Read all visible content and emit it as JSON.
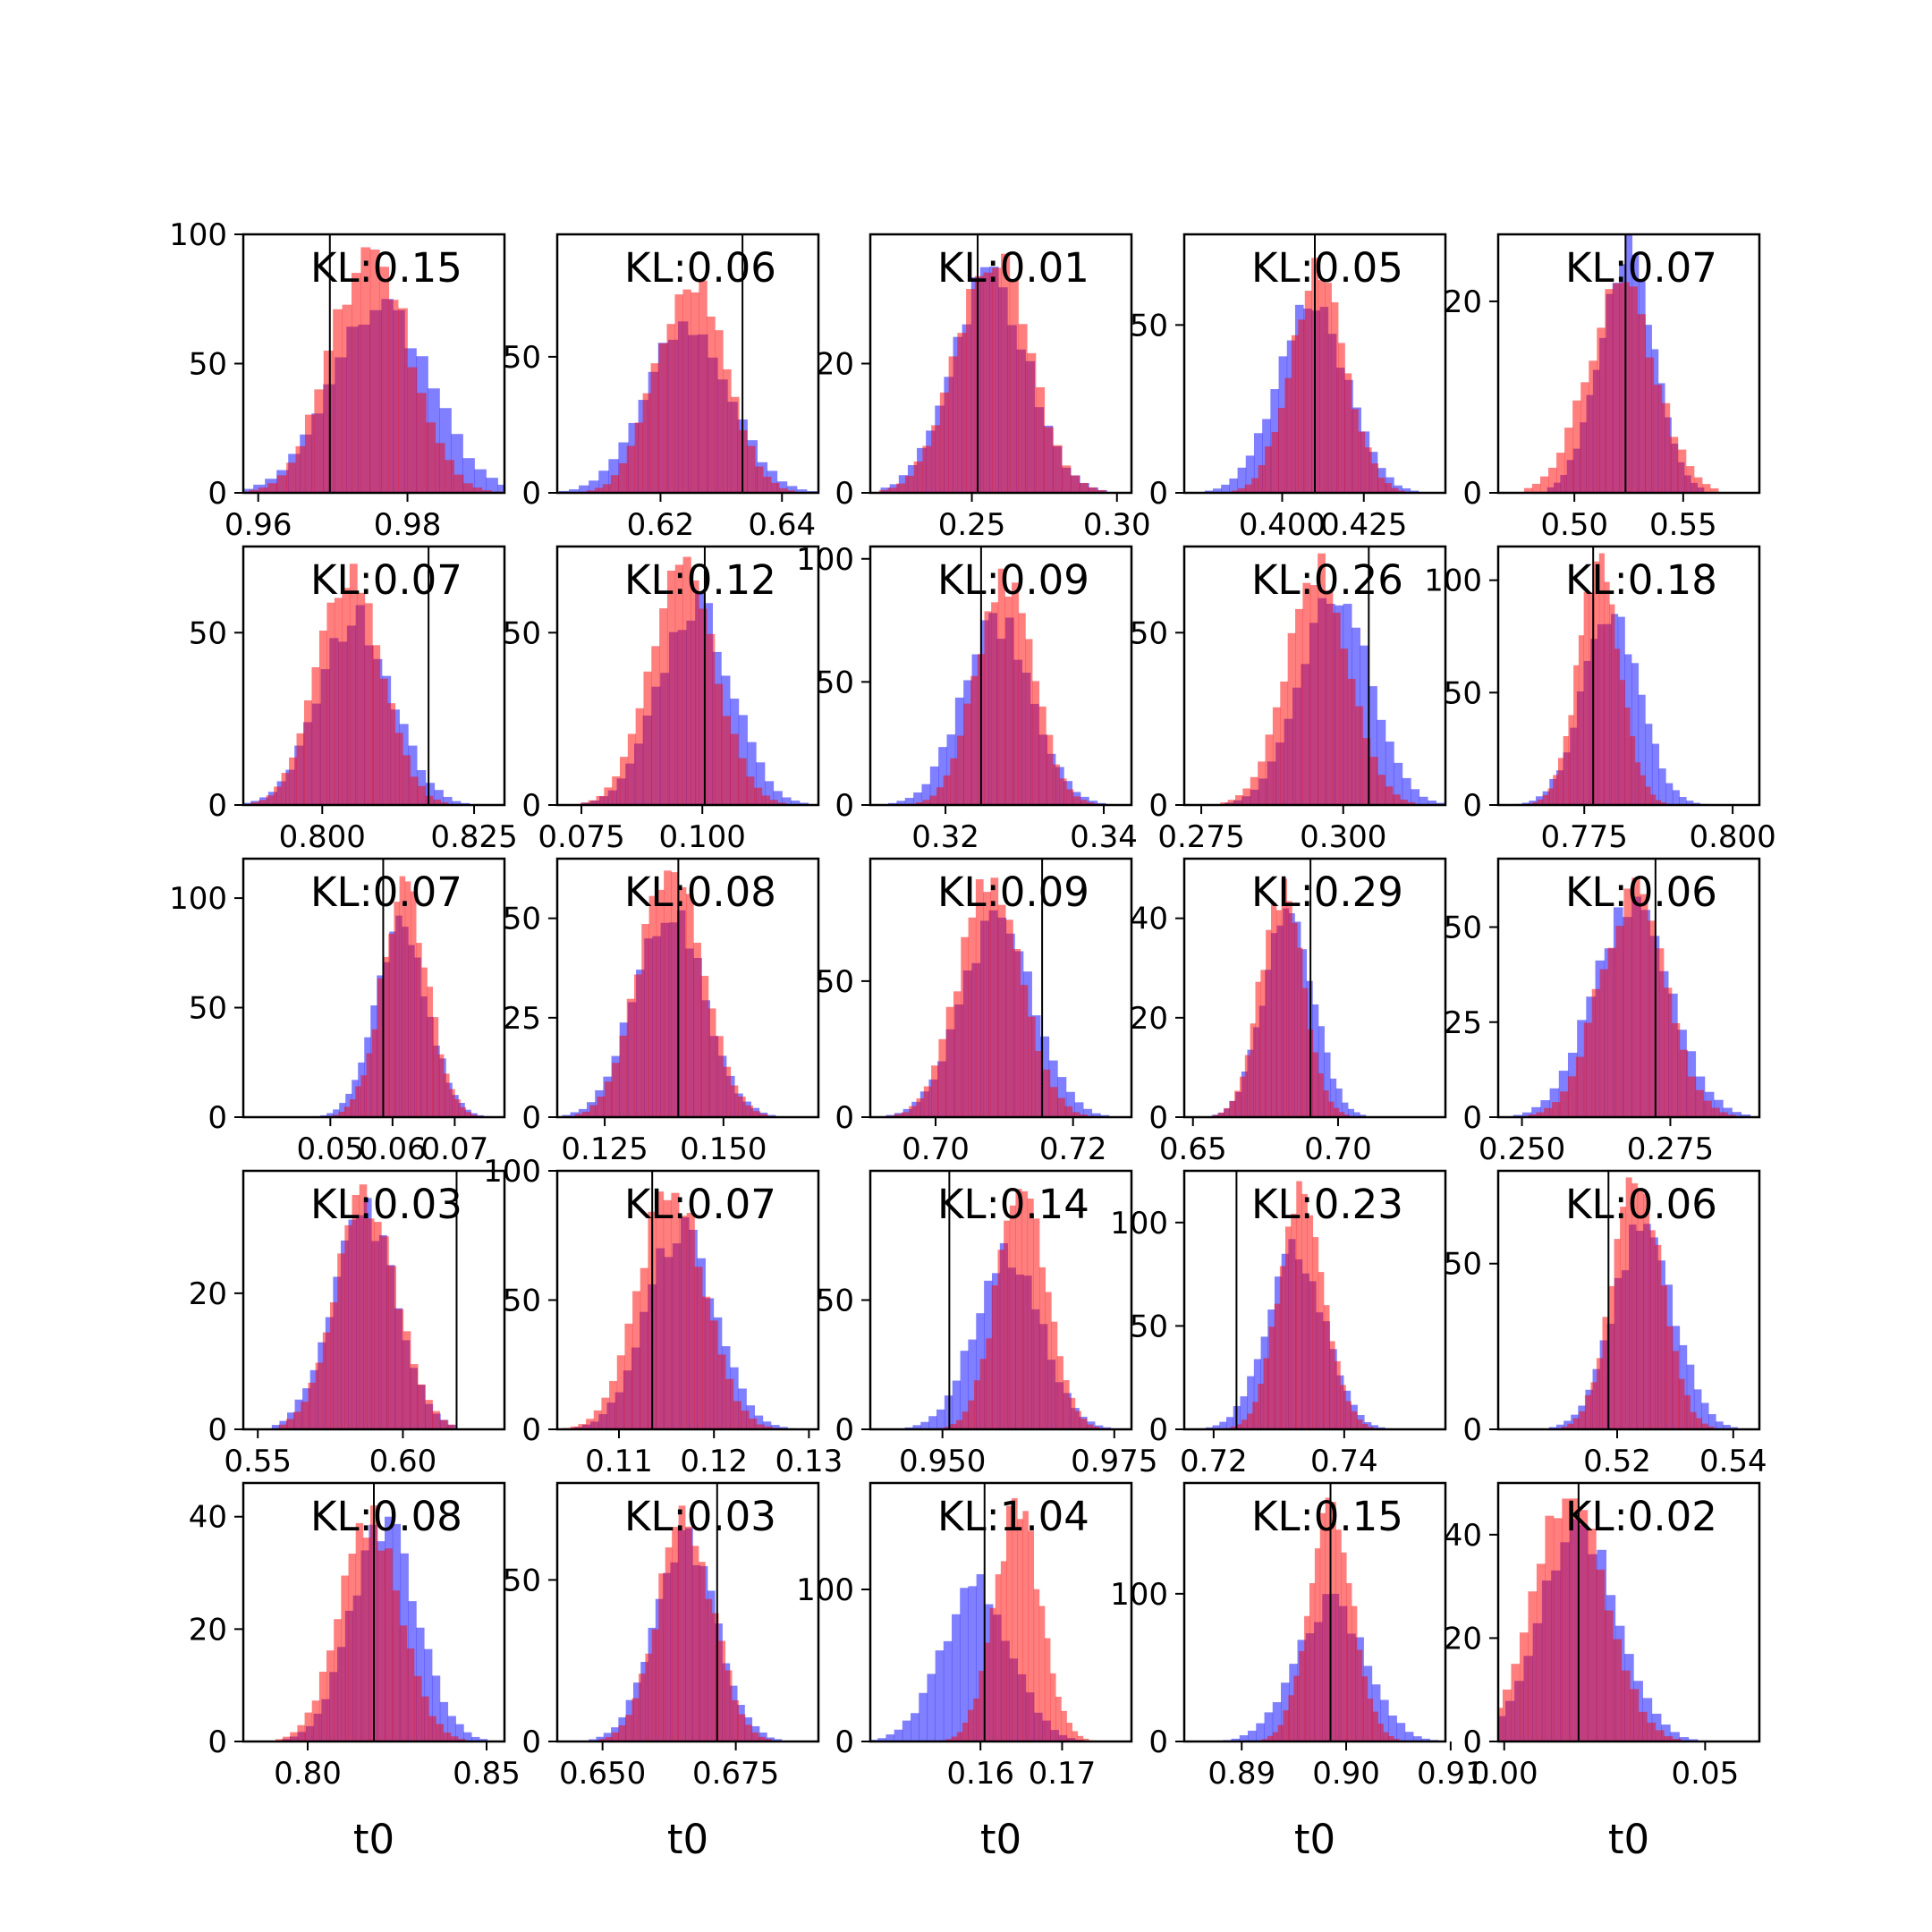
{
  "chart_data": {
    "type": "grid-of-histograms",
    "rows": 5,
    "cols": 5,
    "colors": {
      "series_a": "#ff0000",
      "series_b": "#0000ff",
      "overlap": "#7f00a0",
      "alpha": 0.5,
      "true_value_line": "#000000"
    },
    "xlabel": "t0",
    "panels": [
      {
        "kl": "KL:0.15",
        "xlim": [
          0.958,
          0.993
        ],
        "ylim": [
          0,
          100
        ],
        "xticks": [
          0.96,
          0.98
        ],
        "xtick_labels": [
          "0.96",
          "0.98"
        ],
        "yticks": [
          0,
          50,
          100
        ],
        "ytick_labels": [
          "0",
          "50",
          "100"
        ],
        "true_value": 0.9696,
        "red": {
          "mean": 0.975,
          "sd": 0.0052,
          "peak": 95
        },
        "blue": {
          "mean": 0.9765,
          "sd": 0.0065,
          "peak": 75
        }
      },
      {
        "kl": "KL:0.06",
        "xlim": [
          0.603,
          0.646
        ],
        "ylim": [
          0,
          95
        ],
        "xticks": [
          0.62,
          0.64
        ],
        "xtick_labels": [
          "0.62",
          "0.64"
        ],
        "yticks": [
          0,
          50
        ],
        "ytick_labels": [
          "0",
          "50"
        ],
        "true_value": 0.6335,
        "red": {
          "mean": 0.625,
          "sd": 0.0055,
          "peak": 78
        },
        "blue": {
          "mean": 0.6245,
          "sd": 0.0068,
          "peak": 63
        }
      },
      {
        "kl": "KL:0.01",
        "xlim": [
          0.215,
          0.305
        ],
        "ylim": [
          0,
          40
        ],
        "xticks": [
          0.25,
          0.3
        ],
        "xtick_labels": [
          "0.25",
          "0.30"
        ],
        "yticks": [
          0,
          20
        ],
        "ytick_labels": [
          "0",
          "20"
        ],
        "true_value": 0.252,
        "red": {
          "mean": 0.257,
          "sd": 0.0125,
          "peak": 37
        },
        "blue": {
          "mean": 0.256,
          "sd": 0.013,
          "peak": 35
        }
      },
      {
        "kl": "KL:0.05",
        "xlim": [
          0.37,
          0.45
        ],
        "ylim": [
          0,
          77
        ],
        "xticks": [
          0.4,
          0.425
        ],
        "xtick_labels": [
          "0.400",
          "0.425"
        ],
        "yticks": [
          0,
          50
        ],
        "ytick_labels": [
          "0",
          "50"
        ],
        "true_value": 0.41,
        "red": {
          "mean": 0.411,
          "sd": 0.0085,
          "peak": 70
        },
        "blue": {
          "mean": 0.409,
          "sd": 0.0105,
          "peak": 56
        }
      },
      {
        "kl": "KL:0.07",
        "xlim": [
          0.465,
          0.585
        ],
        "ylim": [
          0,
          27
        ],
        "xticks": [
          0.5,
          0.55
        ],
        "xtick_labels": [
          "0.50",
          "0.55"
        ],
        "yticks": [
          0,
          20
        ],
        "ytick_labels": [
          "0",
          "20"
        ],
        "true_value": 0.5235,
        "red": {
          "mean": 0.5215,
          "sd": 0.0155,
          "peak": 22
        },
        "blue": {
          "mean": 0.5235,
          "sd": 0.0125,
          "peak": 27
        }
      },
      {
        "kl": "KL:0.07",
        "xlim": [
          0.787,
          0.83
        ],
        "ylim": [
          0,
          75
        ],
        "xticks": [
          0.8,
          0.825
        ],
        "xtick_labels": [
          "0.800",
          "0.825"
        ],
        "yticks": [
          0,
          50
        ],
        "ytick_labels": [
          "0",
          "50"
        ],
        "true_value": 0.8175,
        "red": {
          "mean": 0.8045,
          "sd": 0.0052,
          "peak": 70
        },
        "blue": {
          "mean": 0.8055,
          "sd": 0.006,
          "peak": 58
        }
      },
      {
        "kl": "KL:0.12",
        "xlim": [
          0.07,
          0.124
        ],
        "ylim": [
          0,
          75
        ],
        "xticks": [
          0.075,
          0.1
        ],
        "xtick_labels": [
          "0.075",
          "0.100"
        ],
        "yticks": [
          0,
          50
        ],
        "ytick_labels": [
          "0",
          "50"
        ],
        "true_value": 0.1005,
        "red": {
          "mean": 0.096,
          "sd": 0.0068,
          "peak": 72
        },
        "blue": {
          "mean": 0.0985,
          "sd": 0.0075,
          "peak": 62
        }
      },
      {
        "kl": "KL:0.09",
        "xlim": [
          0.3105,
          0.3435
        ],
        "ylim": [
          0,
          105
        ],
        "xticks": [
          0.32,
          0.34
        ],
        "xtick_labels": [
          "0.32",
          "0.34"
        ],
        "yticks": [
          0,
          50,
          100
        ],
        "ytick_labels": [
          "0",
          "50",
          "100"
        ],
        "true_value": 0.3245,
        "red": {
          "mean": 0.3275,
          "sd": 0.0036,
          "peak": 96
        },
        "blue": {
          "mean": 0.3265,
          "sd": 0.0044,
          "peak": 78
        }
      },
      {
        "kl": "KL:0.26",
        "xlim": [
          0.272,
          0.318
        ],
        "ylim": [
          0,
          75
        ],
        "xticks": [
          0.275,
          0.3
        ],
        "xtick_labels": [
          "0.275",
          "0.300"
        ],
        "yticks": [
          0,
          50
        ],
        "ytick_labels": [
          "0",
          "50"
        ],
        "true_value": 0.3045,
        "red": {
          "mean": 0.2955,
          "sd": 0.0055,
          "peak": 73
        },
        "blue": {
          "mean": 0.2985,
          "sd": 0.0062,
          "peak": 60
        }
      },
      {
        "kl": "KL:0.18",
        "xlim": [
          0.7605,
          0.8045
        ],
        "ylim": [
          0,
          115
        ],
        "xticks": [
          0.775,
          0.8
        ],
        "xtick_labels": [
          "0.775",
          "0.800"
        ],
        "yticks": [
          0,
          50,
          100
        ],
        "ytick_labels": [
          "0",
          "50",
          "100"
        ],
        "true_value": 0.7765,
        "red": {
          "mean": 0.7775,
          "sd": 0.0036,
          "peak": 112
        },
        "blue": {
          "mean": 0.7795,
          "sd": 0.0048,
          "peak": 85
        }
      },
      {
        "kl": "KL:0.07",
        "xlim": [
          0.036,
          0.078
        ],
        "ylim": [
          0,
          118
        ],
        "xticks": [
          0.05,
          0.06,
          0.07
        ],
        "xtick_labels": [
          "0.05",
          "0.06",
          "0.07"
        ],
        "yticks": [
          0,
          50,
          100
        ],
        "ytick_labels": [
          "0",
          "50",
          "100"
        ],
        "true_value": 0.0585,
        "red": {
          "mean": 0.062,
          "sd": 0.0037,
          "peak": 110
        },
        "blue": {
          "mean": 0.0615,
          "sd": 0.0042,
          "peak": 92
        }
      },
      {
        "kl": "KL:0.08",
        "xlim": [
          0.115,
          0.17
        ],
        "ylim": [
          0,
          65
        ],
        "xticks": [
          0.125,
          0.15
        ],
        "xtick_labels": [
          "0.125",
          "0.150"
        ],
        "yticks": [
          0,
          25,
          50
        ],
        "ytick_labels": [
          "0",
          "25",
          "50"
        ],
        "true_value": 0.1405,
        "red": {
          "mean": 0.139,
          "sd": 0.0065,
          "peak": 62
        },
        "blue": {
          "mean": 0.1385,
          "sd": 0.0072,
          "peak": 52
        }
      },
      {
        "kl": "KL:0.09",
        "xlim": [
          0.6905,
          0.7285
        ],
        "ylim": [
          0,
          95
        ],
        "xticks": [
          0.7,
          0.72
        ],
        "xtick_labels": [
          "0.70",
          "0.72"
        ],
        "yticks": [
          0,
          50
        ],
        "ytick_labels": [
          "0",
          "50"
        ],
        "true_value": 0.7155,
        "red": {
          "mean": 0.708,
          "sd": 0.0045,
          "peak": 88
        },
        "blue": {
          "mean": 0.709,
          "sd": 0.0052,
          "peak": 76
        }
      },
      {
        "kl": "KL:0.29",
        "xlim": [
          0.647,
          0.737
        ],
        "ylim": [
          0,
          52
        ],
        "xticks": [
          0.65,
          0.7
        ],
        "xtick_labels": [
          "0.65",
          "0.70"
        ],
        "yticks": [
          0,
          20,
          40
        ],
        "ytick_labels": [
          "0",
          "20",
          "40"
        ],
        "true_value": 0.6905,
        "red": {
          "mean": 0.6805,
          "sd": 0.0075,
          "peak": 48
        },
        "blue": {
          "mean": 0.683,
          "sd": 0.0085,
          "peak": 42
        }
      },
      {
        "kl": "KL:0.06",
        "xlim": [
          0.246,
          0.29
        ],
        "ylim": [
          0,
          68
        ],
        "xticks": [
          0.25,
          0.275
        ],
        "xtick_labels": [
          "0.250",
          "0.275"
        ],
        "yticks": [
          0,
          25,
          50
        ],
        "ytick_labels": [
          "0",
          "25",
          "50"
        ],
        "true_value": 0.2725,
        "red": {
          "mean": 0.2685,
          "sd": 0.0056,
          "peak": 63
        },
        "blue": {
          "mean": 0.2685,
          "sd": 0.0064,
          "peak": 58
        }
      },
      {
        "kl": "KL:0.03",
        "xlim": [
          0.545,
          0.635
        ],
        "ylim": [
          0,
          38
        ],
        "xticks": [
          0.55,
          0.6
        ],
        "xtick_labels": [
          "0.55",
          "0.60"
        ],
        "yticks": [
          0,
          20
        ],
        "ytick_labels": [
          "0",
          "20"
        ],
        "true_value": 0.6185,
        "red": {
          "mean": 0.5875,
          "sd": 0.0105,
          "peak": 36
        },
        "blue": {
          "mean": 0.5865,
          "sd": 0.011,
          "peak": 34
        }
      },
      {
        "kl": "KL:0.07",
        "xlim": [
          0.1035,
          0.131
        ],
        "ylim": [
          0,
          100
        ],
        "xticks": [
          0.11,
          0.12,
          0.13
        ],
        "xtick_labels": [
          "0.11",
          "0.12",
          "0.13"
        ],
        "yticks": [
          0,
          50,
          100
        ],
        "ytick_labels": [
          "0",
          "50",
          "100"
        ],
        "true_value": 0.1135,
        "red": {
          "mean": 0.1155,
          "sd": 0.0034,
          "peak": 92
        },
        "blue": {
          "mean": 0.1165,
          "sd": 0.0036,
          "peak": 82
        }
      },
      {
        "kl": "KL:0.14",
        "xlim": [
          0.9395,
          0.9775
        ],
        "ylim": [
          0,
          100
        ],
        "xticks": [
          0.95,
          0.975
        ],
        "xtick_labels": [
          "0.950",
          "0.975"
        ],
        "yticks": [
          0,
          50
        ],
        "ytick_labels": [
          "0",
          "50"
        ],
        "true_value": 0.951,
        "red": {
          "mean": 0.9615,
          "sd": 0.0036,
          "peak": 93
        },
        "blue": {
          "mean": 0.9595,
          "sd": 0.0048,
          "peak": 72
        }
      },
      {
        "kl": "KL:0.23",
        "xlim": [
          0.7155,
          0.7555
        ],
        "ylim": [
          0,
          125
        ],
        "xticks": [
          0.72,
          0.74
        ],
        "xtick_labels": [
          "0.72",
          "0.74"
        ],
        "yticks": [
          0,
          50,
          100
        ],
        "ytick_labels": [
          "0",
          "50",
          "100"
        ],
        "true_value": 0.7235,
        "red": {
          "mean": 0.7335,
          "sd": 0.0035,
          "peak": 120
        },
        "blue": {
          "mean": 0.7325,
          "sd": 0.0044,
          "peak": 92
        }
      },
      {
        "kl": "KL:0.06",
        "xlim": [
          0.4995,
          0.5445
        ],
        "ylim": [
          0,
          78
        ],
        "xticks": [
          0.52,
          0.54
        ],
        "xtick_labels": [
          "0.52",
          "0.54"
        ],
        "yticks": [
          0,
          50
        ],
        "ytick_labels": [
          "0",
          "50"
        ],
        "true_value": 0.5185,
        "red": {
          "mean": 0.5235,
          "sd": 0.0042,
          "peak": 76
        },
        "blue": {
          "mean": 0.5245,
          "sd": 0.0052,
          "peak": 62
        }
      },
      {
        "kl": "KL:0.08",
        "xlim": [
          0.782,
          0.855
        ],
        "ylim": [
          0,
          46
        ],
        "xticks": [
          0.8,
          0.85
        ],
        "xtick_labels": [
          "0.80",
          "0.85"
        ],
        "yticks": [
          0,
          20,
          40
        ],
        "ytick_labels": [
          "0",
          "20",
          "40"
        ],
        "true_value": 0.8185,
        "red": {
          "mean": 0.8175,
          "sd": 0.0085,
          "peak": 42
        },
        "blue": {
          "mean": 0.8215,
          "sd": 0.0092,
          "peak": 40
        }
      },
      {
        "kl": "KL:0.03",
        "xlim": [
          0.6415,
          0.6905
        ],
        "ylim": [
          0,
          80
        ],
        "xticks": [
          0.65,
          0.675
        ],
        "xtick_labels": [
          "0.650",
          "0.675"
        ],
        "yticks": [
          0,
          50
        ],
        "ytick_labels": [
          "0",
          "50"
        ],
        "true_value": 0.6715,
        "red": {
          "mean": 0.6655,
          "sd": 0.0052,
          "peak": 73
        },
        "blue": {
          "mean": 0.6655,
          "sd": 0.0058,
          "peak": 66
        }
      },
      {
        "kl": "KL:1.04",
        "xlim": [
          0.1465,
          0.1785
        ],
        "ylim": [
          0,
          170
        ],
        "xticks": [
          0.16,
          0.17
        ],
        "xtick_labels": [
          "0.16",
          "0.17"
        ],
        "yticks": [
          0,
          100
        ],
        "ytick_labels": [
          "0",
          "100"
        ],
        "true_value": 0.1605,
        "red": {
          "mean": 0.1645,
          "sd": 0.0028,
          "peak": 160
        },
        "blue": {
          "mean": 0.1595,
          "sd": 0.0042,
          "peak": 110
        }
      },
      {
        "kl": "KL:0.15",
        "xlim": [
          0.8845,
          0.9095
        ],
        "ylim": [
          0,
          175
        ],
        "xticks": [
          0.89,
          0.9,
          0.91
        ],
        "xtick_labels": [
          "0.89",
          "0.90",
          "0.91"
        ],
        "yticks": [
          0,
          100
        ],
        "ytick_labels": [
          "0",
          "100"
        ],
        "true_value": 0.8985,
        "red": {
          "mean": 0.8985,
          "sd": 0.0021,
          "peak": 165
        },
        "blue": {
          "mean": 0.8985,
          "sd": 0.0033,
          "peak": 100
        }
      },
      {
        "kl": "KL:0.02",
        "xlim": [
          -0.0015,
          0.0635
        ],
        "ylim": [
          0,
          50
        ],
        "xticks": [
          0,
          0.05
        ],
        "xtick_labels": [
          "0.00",
          "0.05"
        ],
        "yticks": [
          0,
          20,
          40
        ],
        "ytick_labels": [
          "0",
          "20",
          "40"
        ],
        "true_value": 0.0185,
        "red": {
          "mean": 0.0165,
          "sd": 0.0088,
          "peak": 47
        },
        "blue": {
          "mean": 0.0185,
          "sd": 0.0095,
          "peak": 43
        }
      }
    ]
  }
}
